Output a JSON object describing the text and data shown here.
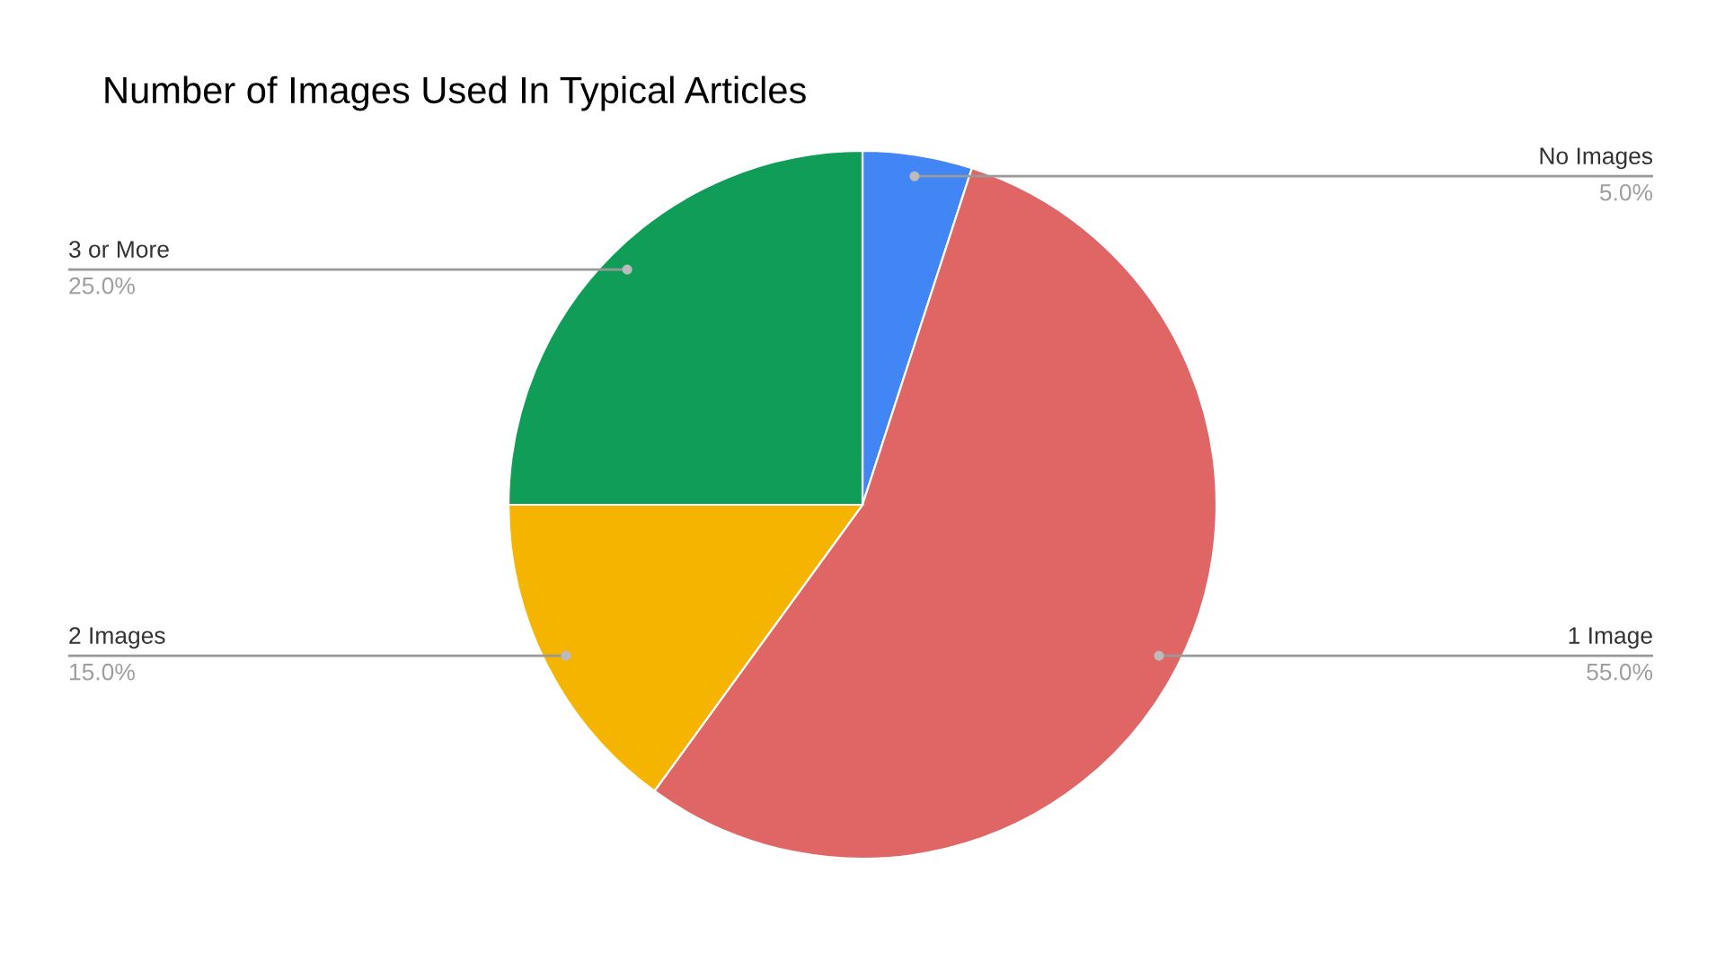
{
  "chart_data": {
    "type": "pie",
    "title": "Number of Images Used In Typical Articles",
    "categories": [
      "No Images",
      "1 Image",
      "2 Images",
      "3 or More"
    ],
    "values": [
      5,
      55,
      15,
      25
    ],
    "colors": [
      "#4285f4",
      "#e06666",
      "#f4b400",
      "#0f9d58"
    ],
    "value_labels": [
      "5.0%",
      "55.0%",
      "15.0%",
      "25.0%"
    ],
    "legend": false
  }
}
